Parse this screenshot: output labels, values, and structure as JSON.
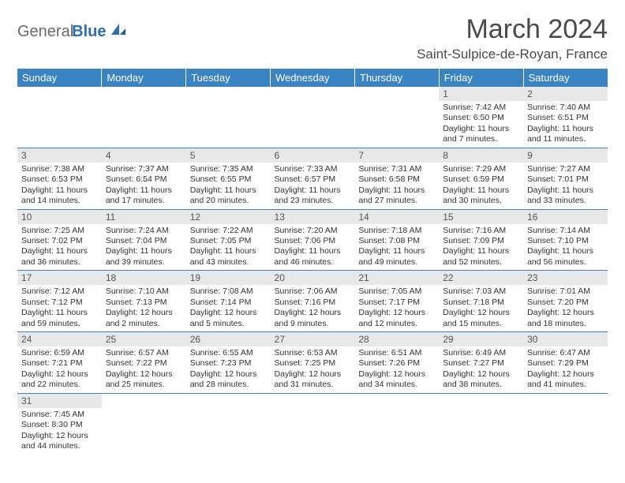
{
  "logo": {
    "text1": "General",
    "text2": "Blue"
  },
  "title": "March 2024",
  "location": "Saint-Sulpice-de-Royan, France",
  "colors": {
    "header_bg": "#3b84c4",
    "header_text": "#ffffff",
    "daynum_bg": "#e8e8e8",
    "border": "#3b84c4",
    "logo_blue": "#2b6fb0",
    "logo_gray": "#6a6a6a"
  },
  "weekdays": [
    "Sunday",
    "Monday",
    "Tuesday",
    "Wednesday",
    "Thursday",
    "Friday",
    "Saturday"
  ],
  "weeks": [
    [
      null,
      null,
      null,
      null,
      null,
      {
        "num": "1",
        "sunrise": "7:42 AM",
        "sunset": "6:50 PM",
        "daylight": "11 hours and 7 minutes."
      },
      {
        "num": "2",
        "sunrise": "7:40 AM",
        "sunset": "6:51 PM",
        "daylight": "11 hours and 11 minutes."
      }
    ],
    [
      {
        "num": "3",
        "sunrise": "7:38 AM",
        "sunset": "6:53 PM",
        "daylight": "11 hours and 14 minutes."
      },
      {
        "num": "4",
        "sunrise": "7:37 AM",
        "sunset": "6:54 PM",
        "daylight": "11 hours and 17 minutes."
      },
      {
        "num": "5",
        "sunrise": "7:35 AM",
        "sunset": "6:55 PM",
        "daylight": "11 hours and 20 minutes."
      },
      {
        "num": "6",
        "sunrise": "7:33 AM",
        "sunset": "6:57 PM",
        "daylight": "11 hours and 23 minutes."
      },
      {
        "num": "7",
        "sunrise": "7:31 AM",
        "sunset": "6:58 PM",
        "daylight": "11 hours and 27 minutes."
      },
      {
        "num": "8",
        "sunrise": "7:29 AM",
        "sunset": "6:59 PM",
        "daylight": "11 hours and 30 minutes."
      },
      {
        "num": "9",
        "sunrise": "7:27 AM",
        "sunset": "7:01 PM",
        "daylight": "11 hours and 33 minutes."
      }
    ],
    [
      {
        "num": "10",
        "sunrise": "7:25 AM",
        "sunset": "7:02 PM",
        "daylight": "11 hours and 36 minutes."
      },
      {
        "num": "11",
        "sunrise": "7:24 AM",
        "sunset": "7:04 PM",
        "daylight": "11 hours and 39 minutes."
      },
      {
        "num": "12",
        "sunrise": "7:22 AM",
        "sunset": "7:05 PM",
        "daylight": "11 hours and 43 minutes."
      },
      {
        "num": "13",
        "sunrise": "7:20 AM",
        "sunset": "7:06 PM",
        "daylight": "11 hours and 46 minutes."
      },
      {
        "num": "14",
        "sunrise": "7:18 AM",
        "sunset": "7:08 PM",
        "daylight": "11 hours and 49 minutes."
      },
      {
        "num": "15",
        "sunrise": "7:16 AM",
        "sunset": "7:09 PM",
        "daylight": "11 hours and 52 minutes."
      },
      {
        "num": "16",
        "sunrise": "7:14 AM",
        "sunset": "7:10 PM",
        "daylight": "11 hours and 56 minutes."
      }
    ],
    [
      {
        "num": "17",
        "sunrise": "7:12 AM",
        "sunset": "7:12 PM",
        "daylight": "11 hours and 59 minutes."
      },
      {
        "num": "18",
        "sunrise": "7:10 AM",
        "sunset": "7:13 PM",
        "daylight": "12 hours and 2 minutes."
      },
      {
        "num": "19",
        "sunrise": "7:08 AM",
        "sunset": "7:14 PM",
        "daylight": "12 hours and 5 minutes."
      },
      {
        "num": "20",
        "sunrise": "7:06 AM",
        "sunset": "7:16 PM",
        "daylight": "12 hours and 9 minutes."
      },
      {
        "num": "21",
        "sunrise": "7:05 AM",
        "sunset": "7:17 PM",
        "daylight": "12 hours and 12 minutes."
      },
      {
        "num": "22",
        "sunrise": "7:03 AM",
        "sunset": "7:18 PM",
        "daylight": "12 hours and 15 minutes."
      },
      {
        "num": "23",
        "sunrise": "7:01 AM",
        "sunset": "7:20 PM",
        "daylight": "12 hours and 18 minutes."
      }
    ],
    [
      {
        "num": "24",
        "sunrise": "6:59 AM",
        "sunset": "7:21 PM",
        "daylight": "12 hours and 22 minutes."
      },
      {
        "num": "25",
        "sunrise": "6:57 AM",
        "sunset": "7:22 PM",
        "daylight": "12 hours and 25 minutes."
      },
      {
        "num": "26",
        "sunrise": "6:55 AM",
        "sunset": "7:23 PM",
        "daylight": "12 hours and 28 minutes."
      },
      {
        "num": "27",
        "sunrise": "6:53 AM",
        "sunset": "7:25 PM",
        "daylight": "12 hours and 31 minutes."
      },
      {
        "num": "28",
        "sunrise": "6:51 AM",
        "sunset": "7:26 PM",
        "daylight": "12 hours and 34 minutes."
      },
      {
        "num": "29",
        "sunrise": "6:49 AM",
        "sunset": "7:27 PM",
        "daylight": "12 hours and 38 minutes."
      },
      {
        "num": "30",
        "sunrise": "6:47 AM",
        "sunset": "7:29 PM",
        "daylight": "12 hours and 41 minutes."
      }
    ],
    [
      {
        "num": "31",
        "sunrise": "7:45 AM",
        "sunset": "8:30 PM",
        "daylight": "12 hours and 44 minutes."
      },
      null,
      null,
      null,
      null,
      null,
      null
    ]
  ]
}
